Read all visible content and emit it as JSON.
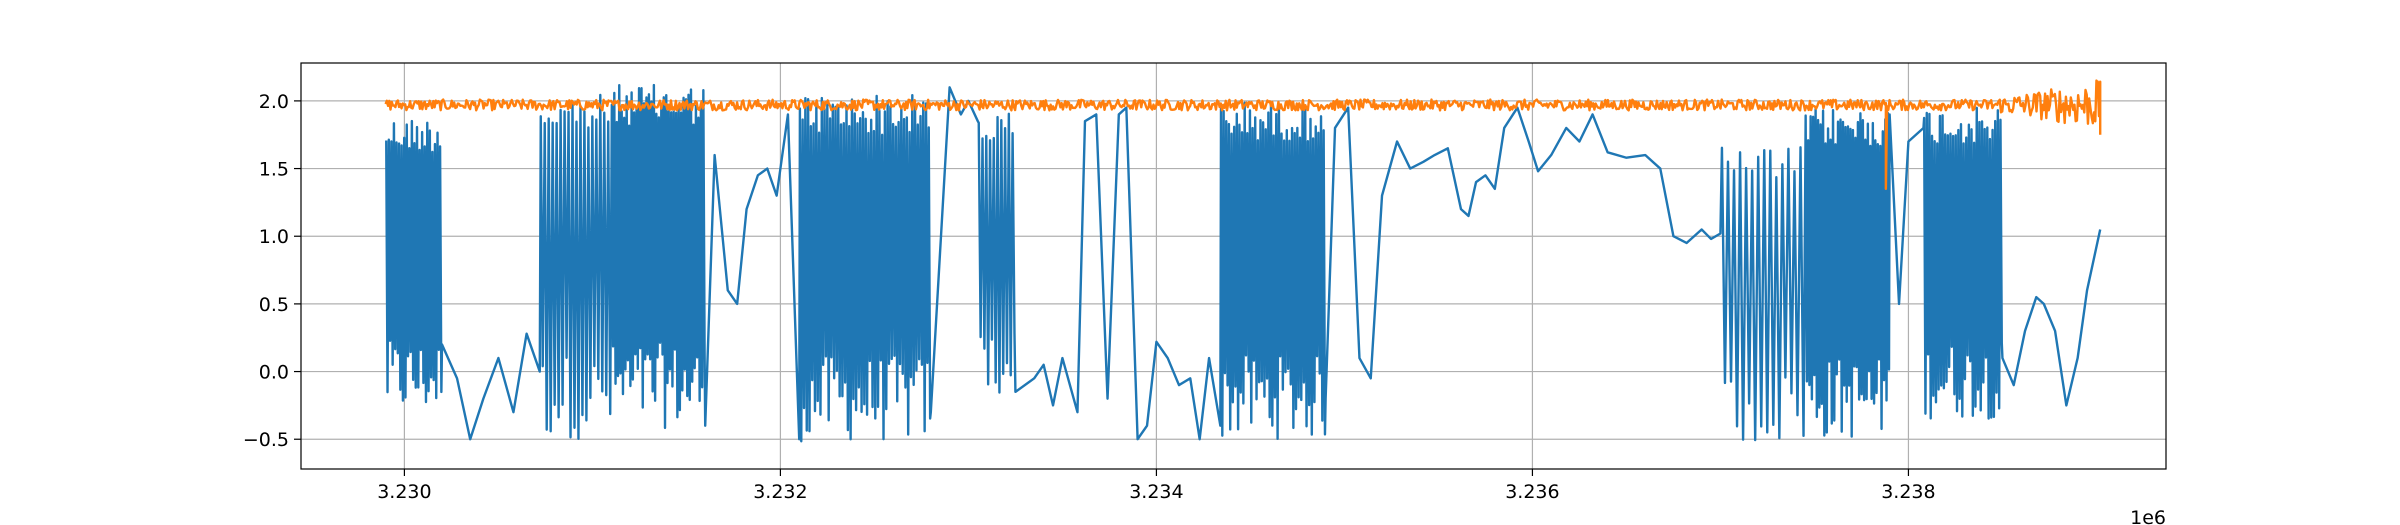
{
  "chart_data": {
    "type": "line",
    "title": "",
    "xlabel": "",
    "ylabel": "",
    "x_offset_label": "1e6",
    "xlim": [
      3.22945,
      3.23937
    ],
    "ylim": [
      -0.72,
      2.28
    ],
    "grid": true,
    "legend": "none",
    "x_ticks": [
      {
        "value": 3.23,
        "label": "3.230"
      },
      {
        "value": 3.232,
        "label": "3.232"
      },
      {
        "value": 3.234,
        "label": "3.234"
      },
      {
        "value": 3.236,
        "label": "3.236"
      },
      {
        "value": 3.238,
        "label": "3.238"
      }
    ],
    "y_ticks": [
      {
        "value": -0.5,
        "label": "−0.5"
      },
      {
        "value": 0.0,
        "label": "0.0"
      },
      {
        "value": 0.5,
        "label": "0.5"
      },
      {
        "value": 1.0,
        "label": "1.0"
      },
      {
        "value": 1.5,
        "label": "1.5"
      },
      {
        "value": 2.0,
        "label": "2.0"
      }
    ],
    "series": [
      {
        "color": "#1f77b4",
        "x_range": [
          3.2299,
          3.2389
        ],
        "segments": [
          {
            "kind": "osc",
            "x0": 3.2299,
            "x1": 3.2302,
            "lo": -0.32,
            "hi": 1.88,
            "cycles": 22
          },
          {
            "kind": "pts",
            "points": [
              [
                3.2302,
                0.2
              ],
              [
                3.23028,
                -0.05
              ],
              [
                3.23035,
                -0.5
              ],
              [
                3.23042,
                -0.2
              ],
              [
                3.2305,
                0.1
              ],
              [
                3.23058,
                -0.3
              ],
              [
                3.23065,
                0.28
              ],
              [
                3.23072,
                0.0
              ]
            ]
          },
          {
            "kind": "osc",
            "x0": 3.23072,
            "x1": 3.2311,
            "lo": -0.5,
            "hi": 2.05,
            "cycles": 18
          },
          {
            "kind": "osc",
            "x0": 3.2311,
            "x1": 3.2316,
            "lo": -0.42,
            "hi": 2.12,
            "cycles": 38
          },
          {
            "kind": "pts",
            "points": [
              [
                3.2316,
                -0.4
              ],
              [
                3.23165,
                1.6
              ],
              [
                3.23172,
                0.6
              ],
              [
                3.23177,
                0.5
              ],
              [
                3.23182,
                1.2
              ],
              [
                3.23188,
                1.45
              ],
              [
                3.23193,
                1.5
              ],
              [
                3.23198,
                1.3
              ],
              [
                3.23204,
                1.9
              ],
              [
                3.2321,
                -0.5
              ]
            ]
          },
          {
            "kind": "osc",
            "x0": 3.2321,
            "x1": 3.2328,
            "lo": -0.52,
            "hi": 2.05,
            "cycles": 48
          },
          {
            "kind": "pts",
            "points": [
              [
                3.2328,
                -0.3
              ],
              [
                3.2329,
                2.1
              ],
              [
                3.23296,
                1.9
              ],
              [
                3.233,
                2.0
              ],
              [
                3.23305,
                1.85
              ]
            ]
          },
          {
            "kind": "osc",
            "x0": 3.23305,
            "x1": 3.23325,
            "lo": -0.2,
            "hi": 1.92,
            "cycles": 10
          },
          {
            "kind": "pts",
            "points": [
              [
                3.23325,
                -0.15
              ],
              [
                3.23335,
                -0.05
              ],
              [
                3.2334,
                0.05
              ],
              [
                3.23345,
                -0.25
              ],
              [
                3.2335,
                0.1
              ],
              [
                3.23358,
                -0.3
              ],
              [
                3.23362,
                1.85
              ],
              [
                3.23368,
                1.9
              ],
              [
                3.23374,
                -0.2
              ],
              [
                3.2338,
                1.9
              ],
              [
                3.23384,
                1.95
              ],
              [
                3.2339,
                -0.5
              ],
              [
                3.23395,
                -0.4
              ],
              [
                3.234,
                0.22
              ],
              [
                3.23406,
                0.1
              ],
              [
                3.23412,
                -0.1
              ],
              [
                3.23418,
                -0.05
              ],
              [
                3.23423,
                -0.5
              ],
              [
                3.23428,
                0.1
              ],
              [
                3.23434,
                -0.4
              ]
            ]
          },
          {
            "kind": "osc",
            "x0": 3.23434,
            "x1": 3.2349,
            "lo": -0.5,
            "hi": 2.0,
            "cycles": 40
          },
          {
            "kind": "pts",
            "points": [
              [
                3.2349,
                -0.2
              ],
              [
                3.23495,
                1.8
              ],
              [
                3.23502,
                1.95
              ],
              [
                3.23508,
                0.1
              ],
              [
                3.23514,
                -0.05
              ],
              [
                3.2352,
                1.3
              ],
              [
                3.23528,
                1.7
              ],
              [
                3.23535,
                1.5
              ],
              [
                3.23542,
                1.55
              ],
              [
                3.23548,
                1.6
              ],
              [
                3.23555,
                1.65
              ],
              [
                3.23562,
                1.2
              ],
              [
                3.23566,
                1.15
              ],
              [
                3.2357,
                1.4
              ],
              [
                3.23575,
                1.45
              ],
              [
                3.2358,
                1.35
              ],
              [
                3.23585,
                1.8
              ],
              [
                3.23592,
                1.95
              ],
              [
                3.23598,
                1.7
              ],
              [
                3.23603,
                1.48
              ],
              [
                3.2361,
                1.6
              ],
              [
                3.23618,
                1.8
              ],
              [
                3.23625,
                1.7
              ],
              [
                3.23632,
                1.9
              ],
              [
                3.2364,
                1.62
              ],
              [
                3.2365,
                1.58
              ],
              [
                3.2366,
                1.6
              ],
              [
                3.23668,
                1.5
              ],
              [
                3.23675,
                1.0
              ],
              [
                3.23682,
                0.95
              ],
              [
                3.2369,
                1.05
              ],
              [
                3.23695,
                0.98
              ],
              [
                3.237,
                1.02
              ]
            ]
          },
          {
            "kind": "osc",
            "x0": 3.237,
            "x1": 3.23745,
            "lo": -0.55,
            "hi": 1.66,
            "cycles": 14
          },
          {
            "kind": "osc",
            "x0": 3.23745,
            "x1": 3.2379,
            "lo": -0.5,
            "hi": 1.95,
            "cycles": 34
          },
          {
            "kind": "pts",
            "points": [
              [
                3.2379,
                1.9
              ],
              [
                3.23795,
                0.5
              ],
              [
                3.238,
                1.7
              ],
              [
                3.23808,
                1.8
              ]
            ]
          },
          {
            "kind": "osc",
            "x0": 3.23808,
            "x1": 3.2385,
            "lo": -0.35,
            "hi": 1.95,
            "cycles": 30
          },
          {
            "kind": "pts",
            "points": [
              [
                3.2385,
                0.1
              ],
              [
                3.23856,
                -0.1
              ],
              [
                3.23862,
                0.3
              ],
              [
                3.23868,
                0.55
              ],
              [
                3.23872,
                0.5
              ],
              [
                3.23878,
                0.3
              ],
              [
                3.23884,
                -0.25
              ],
              [
                3.2389,
                0.1
              ],
              [
                3.23895,
                0.6
              ],
              [
                3.23902,
                1.05
              ]
            ]
          }
        ]
      },
      {
        "color": "#ff7f0e",
        "x_range": [
          3.2299,
          3.23902
        ],
        "mean": 1.97,
        "noise": 0.04,
        "wide_noise_start": 3.2384,
        "wide_noise_amplitude": 0.18,
        "spikes": [
          {
            "x": 3.23788,
            "y": 1.35
          },
          {
            "x": 3.23902,
            "y": 1.75
          },
          {
            "x": 3.239,
            "y": 2.15
          }
        ]
      }
    ]
  }
}
